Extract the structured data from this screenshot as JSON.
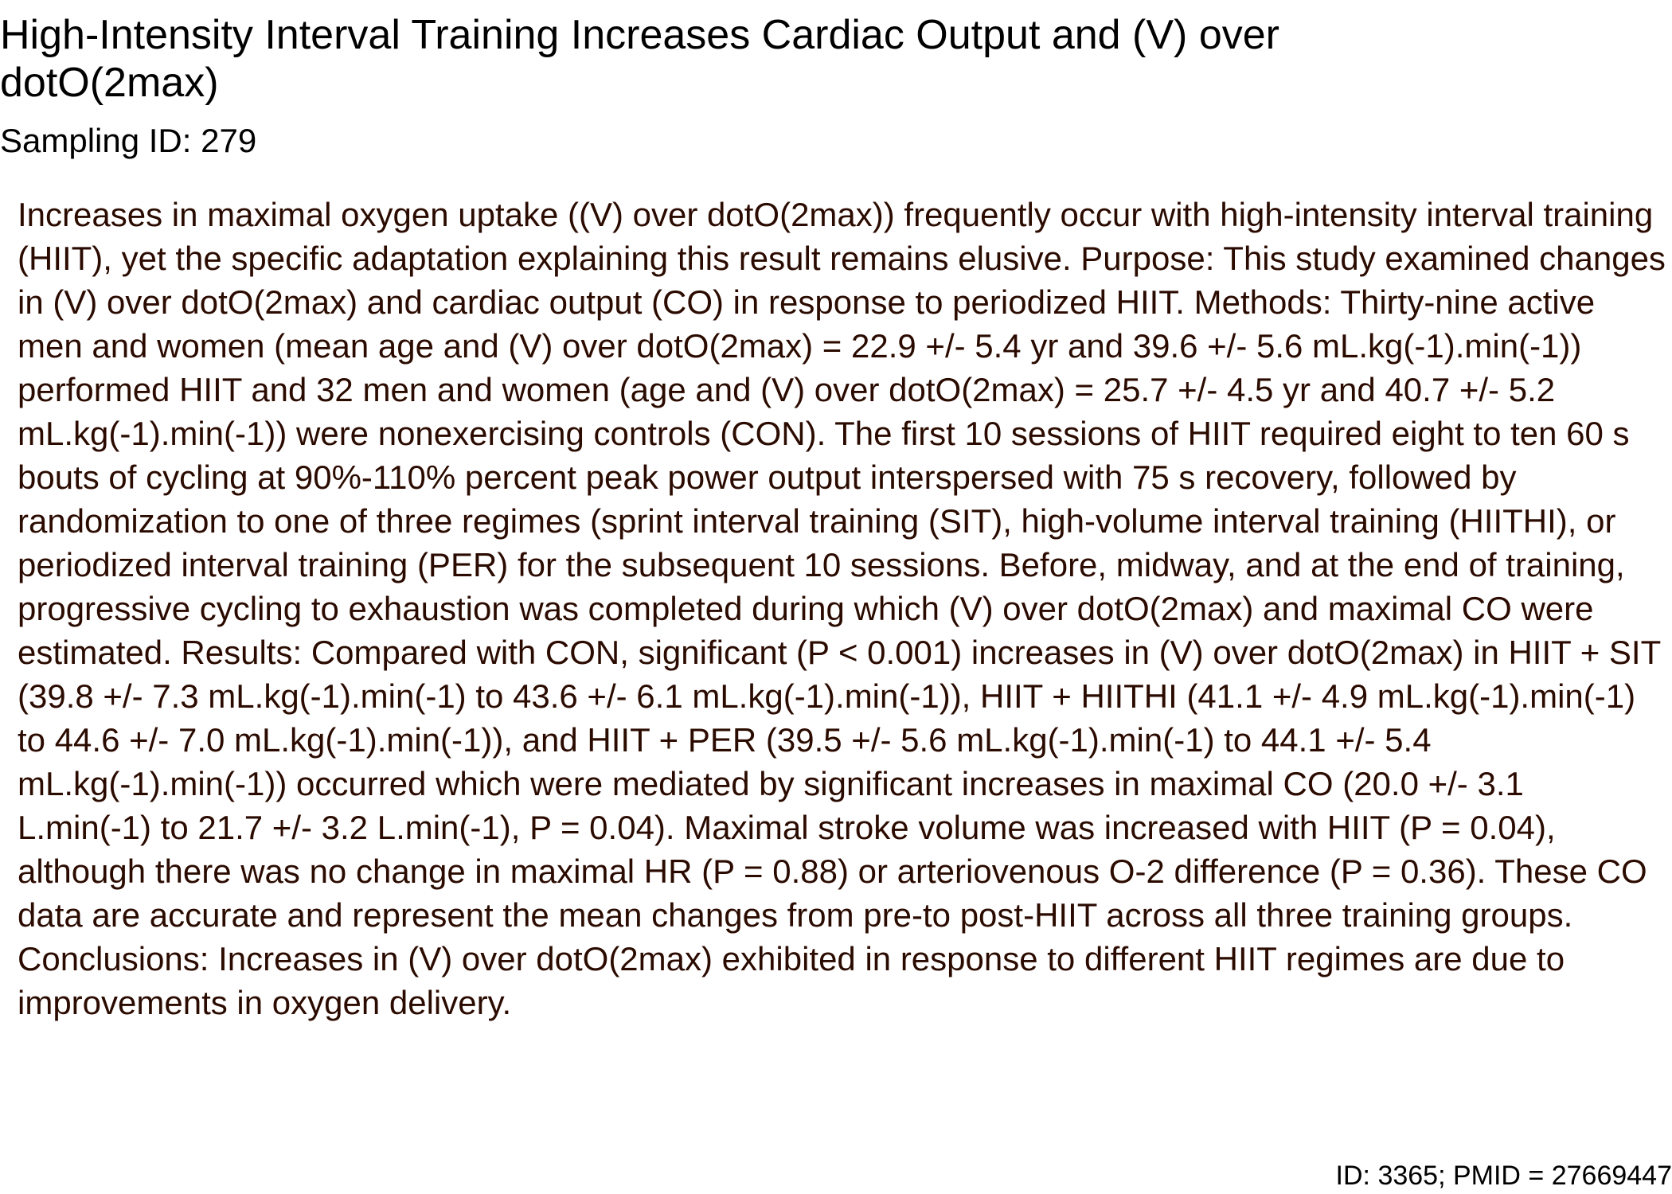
{
  "document": {
    "title": "High-Intensity Interval Training Increases Cardiac Output and (V) over dotO(2max)",
    "sampling_id": "Sampling ID: 279",
    "abstract": "Increases in maximal oxygen uptake ((V) over dotO(2max)) frequently occur with high-intensity interval training (HIIT), yet the specific adaptation explaining this result remains elusive. Purpose: This study examined changes in (V) over dotO(2max) and cardiac output (CO) in response to periodized HIIT. Methods: Thirty-nine active men and women (mean age and (V) over dotO(2max) = 22.9 +/- 5.4 yr and 39.6 +/- 5.6 mL.kg(-1).min(-1)) performed HIIT and 32 men and women (age and (V) over dotO(2max) = 25.7 +/- 4.5 yr and 40.7 +/- 5.2 mL.kg(-1).min(-1)) were nonexercising controls (CON). The first 10 sessions of HIIT required eight to ten 60 s bouts of cycling at 90%-110% percent peak power output interspersed with 75 s recovery, followed by randomization to one of three regimes (sprint interval training (SIT), high-volume interval training (HIITHI), or periodized interval training (PER) for the subsequent 10 sessions. Before, midway, and at the end of training, progressive cycling to exhaustion was completed during which (V) over dotO(2max) and maximal CO were estimated. Results: Compared with CON, significant (P < 0.001) increases in (V) over dotO(2max) in HIIT + SIT (39.8 +/- 7.3 mL.kg(-1).min(-1) to 43.6 +/- 6.1 mL.kg(-1).min(-1)), HIIT + HIITHI (41.1 +/- 4.9 mL.kg(-1).min(-1) to 44.6 +/- 7.0 mL.kg(-1).min(-1)), and HIIT + PER (39.5 +/- 5.6 mL.kg(-1).min(-1) to 44.1 +/- 5.4 mL.kg(-1).min(-1)) occurred which were mediated by significant increases in maximal CO (20.0 +/- 3.1 L.min(-1) to 21.7 +/- 3.2 L.min(-1), P = 0.04). Maximal stroke volume was increased with HIIT (P = 0.04), although there was no change in maximal HR (P = 0.88) or arteriovenous O-2 difference (P = 0.36). These CO data are accurate and represent the mean changes from pre-to post-HIIT across all three training groups. Conclusions: Increases in (V) over dotO(2max) exhibited in response to different HIIT regimes are due to improvements in oxygen delivery.",
    "footer_id": "ID: 3365; PMID = 27669447"
  },
  "colors": {
    "title_text": "#000000",
    "body_text": "#2b0b00",
    "background": "#ffffff"
  }
}
